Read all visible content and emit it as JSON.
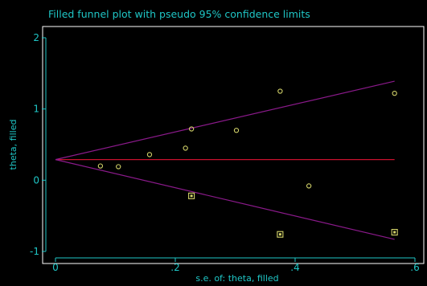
{
  "colors": {
    "background": "#000000",
    "text": "#1fc6c6",
    "axis": "#1fc6c6",
    "frame": "#ffffff",
    "center_line": "#c8102e",
    "ci_lines": "#8b1a8b",
    "observed": "#d4d46a",
    "filled": "#d4d46a"
  },
  "chart_data": {
    "type": "scatter",
    "title": "Filled funnel plot with pseudo 95% confidence limits",
    "xlabel": "s.e. of: theta, filled",
    "ylabel": "theta, filled",
    "xlim": [
      0,
      0.6
    ],
    "ylim": [
      -1,
      2
    ],
    "xticks": [
      0,
      0.2,
      0.4,
      0.6
    ],
    "xtick_labels": [
      "0",
      ".2",
      ".4",
      ".6"
    ],
    "yticks": [
      -1,
      0,
      1,
      2
    ],
    "ytick_labels": [
      "-1",
      "0",
      "1",
      "2"
    ],
    "grid": false,
    "pooled_estimate": 0.29,
    "ci_upper": {
      "x": [
        0,
        0.566
      ],
      "y": [
        0.29,
        1.39
      ]
    },
    "ci_lower": {
      "x": [
        0,
        0.566
      ],
      "y": [
        0.29,
        -0.83
      ]
    },
    "series": [
      {
        "marker": "circle",
        "points": [
          {
            "x": 0.075,
            "y": 0.2
          },
          {
            "x": 0.105,
            "y": 0.19
          },
          {
            "x": 0.157,
            "y": 0.36
          },
          {
            "x": 0.217,
            "y": 0.45
          },
          {
            "x": 0.227,
            "y": 0.72
          },
          {
            "x": 0.302,
            "y": 0.7
          },
          {
            "x": 0.375,
            "y": 1.25
          },
          {
            "x": 0.423,
            "y": -0.08
          },
          {
            "x": 0.566,
            "y": 1.22
          }
        ]
      },
      {
        "marker": "square",
        "points": [
          {
            "x": 0.227,
            "y": -0.22
          },
          {
            "x": 0.375,
            "y": -0.76
          },
          {
            "x": 0.566,
            "y": -0.73
          }
        ]
      }
    ]
  }
}
